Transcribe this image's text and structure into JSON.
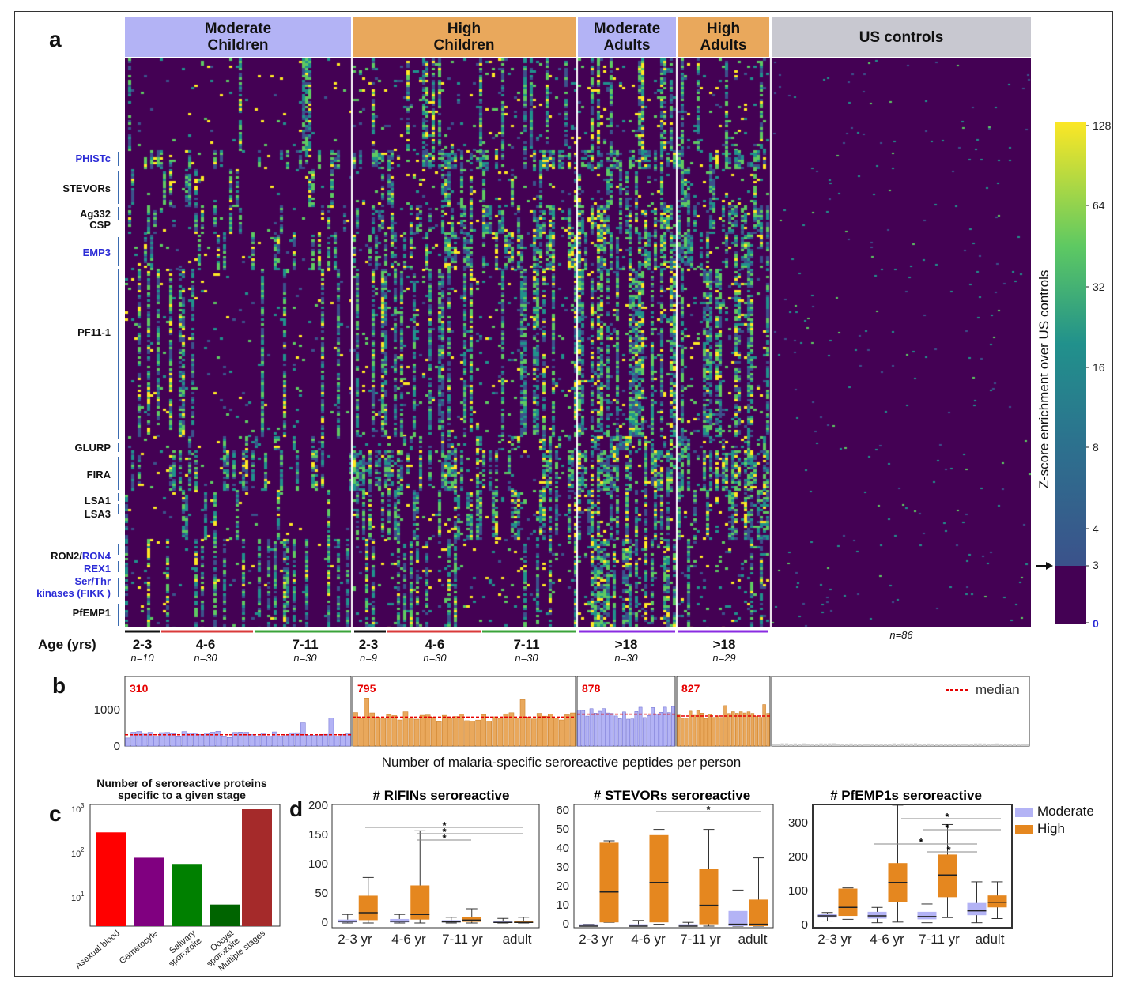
{
  "panel_labels": {
    "a": "a",
    "b": "b",
    "c": "c",
    "d": "d"
  },
  "heatmap": {
    "groups": [
      {
        "label": "Moderate\nChildren",
        "color": "#b3b3f5"
      },
      {
        "label": "High\nChildren",
        "color": "#e9a85c"
      },
      {
        "label": "Moderate\nAdults",
        "color": "#b3b3f5"
      },
      {
        "label": "High\nAdults",
        "color": "#e9a85c"
      },
      {
        "label": "US controls",
        "color": "#c8c8d0"
      }
    ],
    "protein_labels": [
      {
        "text": "PHISTc",
        "color": "#2b2bd6"
      },
      {
        "text": "STEVORs",
        "color": "#111111"
      },
      {
        "text": "Ag332",
        "color": "#111111"
      },
      {
        "text": "CSP",
        "color": "#111111"
      },
      {
        "text": "EMP3",
        "color": "#2b2bd6"
      },
      {
        "text": "PF11-1",
        "color": "#111111"
      },
      {
        "text": "GLURP",
        "color": "#111111"
      },
      {
        "text": "FIRA",
        "color": "#111111"
      },
      {
        "text": "LSA1",
        "color": "#111111"
      },
      {
        "text": "LSA3",
        "color": "#111111"
      },
      {
        "text": "RON2/",
        "color": "#111111"
      },
      {
        "text": "RON4",
        "color": "#2b2bd6"
      },
      {
        "text": "REX1",
        "color": "#2b2bd6"
      },
      {
        "text": "Ser/Thr\nkinases (FIKK )",
        "color": "#2b2bd6"
      },
      {
        "text": "PfEMP1",
        "color": "#111111"
      }
    ],
    "age_title": "Age (yrs)",
    "age_groups": [
      {
        "label": "2-3",
        "n": "n=10",
        "color": "#111111"
      },
      {
        "label": "4-6",
        "n": "n=30",
        "color": "#d93a3a"
      },
      {
        "label": "7-11",
        "n": "n=30",
        "color": "#3aa33a"
      },
      {
        "label": "2-3",
        "n": "n=9",
        "color": "#111111"
      },
      {
        "label": "4-6",
        "n": "n=30",
        "color": "#d93a3a"
      },
      {
        "label": "7-11",
        "n": "n=30",
        "color": "#3aa33a"
      },
      {
        "label": ">18",
        "n": "n=30",
        "color": "#8a2be2"
      },
      {
        "label": ">18",
        "n": "n=29",
        "color": "#8a2be2"
      }
    ],
    "us_n": "n=86",
    "colorbar": {
      "title": "Z-score enrichment over US controls",
      "ticks": [
        "128",
        "64",
        "32",
        "16",
        "8",
        "4",
        "3",
        "0"
      ],
      "colors": [
        "#440154",
        "#3b528b",
        "#21918c",
        "#5ec962",
        "#fde725"
      ]
    }
  },
  "panel_b": {
    "ytick_1000": "1000",
    "ytick_0": "0",
    "medians": [
      "310",
      "795",
      "878",
      "827"
    ],
    "legend": "median",
    "xlabel": "Number of malaria-specific seroreactive peptides per person"
  },
  "panel_c": {
    "title": "Number of seroreactive proteins\nspecific to a given stage",
    "yticks": [
      "10",
      "10",
      "10"
    ],
    "ytick_exps": [
      "3",
      "2",
      "1"
    ]
  },
  "panel_d": {
    "legend": [
      {
        "label": "Moderate",
        "color": "#b3b3f5"
      },
      {
        "label": "High",
        "color": "#e5871f"
      }
    ],
    "plots": [
      {
        "title": "# RIFINs seroreactive",
        "yticks": [
          "200",
          "150",
          "100",
          "50",
          "0"
        ],
        "xticks": [
          "2-3 yr",
          "4-6 yr",
          "7-11 yr",
          "adult"
        ]
      },
      {
        "title": "# STEVORs seroreactive",
        "yticks": [
          "60",
          "50",
          "40",
          "30",
          "20",
          "10",
          "0"
        ],
        "xticks": [
          "2-3 yr",
          "4-6 yr",
          "7-11 yr",
          "adult"
        ]
      },
      {
        "title": "# PfEMP1s seroreactive",
        "yticks": [
          "300",
          "200",
          "100",
          "0"
        ],
        "xticks": [
          "2-3 yr",
          "4-6 yr",
          "7-11 yr",
          "adult"
        ]
      }
    ],
    "star": "*"
  },
  "chart_data": [
    {
      "type": "bar",
      "title": "",
      "xlabel": "Number of malaria-specific seroreactive peptides per person",
      "ylabel": "",
      "ylim": [
        0,
        1600
      ],
      "series": [
        {
          "name": "Moderate Children",
          "median": 310
        },
        {
          "name": "High Children",
          "median": 795
        },
        {
          "name": "Moderate Adults",
          "median": 878
        },
        {
          "name": "High Adults",
          "median": 827
        }
      ]
    },
    {
      "type": "bar",
      "title": "Number of seroreactive proteins\nspecific to a given stage",
      "scale": "log",
      "ylim": [
        5,
        1000
      ],
      "categories": [
        "Asexual blood",
        "Gametocyte",
        "Salivary sporozoite",
        "Oocyst sporozoite",
        "Multiple stages"
      ],
      "values": [
        300,
        80,
        58,
        7,
        1000
      ],
      "colors": [
        "#ff0000",
        "#800080",
        "#008000",
        "#006400",
        "#a52a2a"
      ]
    },
    {
      "type": "box",
      "title": "# RIFINs seroreactive",
      "categories": [
        "2-3 yr",
        "4-6 yr",
        "7-11 yr",
        "adult"
      ],
      "ylim": [
        0,
        200
      ],
      "series": [
        {
          "name": "Moderate",
          "q1": [
            1,
            1,
            1,
            0
          ],
          "median": [
            3,
            3,
            2,
            1
          ],
          "q3": [
            6,
            7,
            5,
            4
          ],
          "wlo": [
            0,
            0,
            0,
            0
          ],
          "whi": [
            15,
            15,
            10,
            8
          ]
        },
        {
          "name": "High",
          "q1": [
            5,
            6,
            2,
            0
          ],
          "median": [
            18,
            15,
            5,
            1
          ],
          "q3": [
            48,
            66,
            10,
            4
          ],
          "wlo": [
            0,
            0,
            0,
            0
          ],
          "whi": [
            80,
            162,
            25,
            10
          ]
        }
      ]
    },
    {
      "type": "box",
      "title": "# STEVORs seroreactive",
      "categories": [
        "2-3 yr",
        "4-6 yr",
        "7-11 yr",
        "adult"
      ],
      "ylim": [
        0,
        65
      ],
      "series": [
        {
          "name": "Moderate",
          "q1": [
            0,
            0,
            0,
            0
          ],
          "median": [
            0,
            0,
            0,
            1
          ],
          "q3": [
            1,
            1,
            1,
            8
          ],
          "wlo": [
            0,
            0,
            0,
            0
          ],
          "whi": [
            1,
            3,
            2,
            19
          ]
        },
        {
          "name": "High",
          "q1": [
            2,
            2,
            1,
            0
          ],
          "median": [
            18,
            23,
            11,
            1
          ],
          "q3": [
            44,
            48,
            30,
            14
          ],
          "wlo": [
            2,
            1,
            0,
            0
          ],
          "whi": [
            45,
            51,
            51,
            36
          ]
        }
      ]
    },
    {
      "type": "box",
      "title": "# PfEMP1s seroreactive",
      "categories": [
        "2-3 yr",
        "4-6 yr",
        "7-11 yr",
        "adult"
      ],
      "ylim": [
        0,
        360
      ],
      "series": [
        {
          "name": "Moderate",
          "q1": [
            25,
            22,
            20,
            32
          ],
          "median": [
            30,
            30,
            28,
            45
          ],
          "q3": [
            35,
            42,
            42,
            68
          ],
          "wlo": [
            15,
            10,
            10,
            10
          ],
          "whi": [
            40,
            55,
            65,
            130
          ]
        },
        {
          "name": "High",
          "q1": [
            30,
            70,
            85,
            55
          ],
          "median": [
            55,
            128,
            150,
            70
          ],
          "q3": [
            110,
            185,
            210,
            90
          ],
          "wlo": [
            20,
            12,
            25,
            22
          ],
          "whi": [
            112,
            355,
            298,
            130
          ]
        }
      ]
    }
  ]
}
